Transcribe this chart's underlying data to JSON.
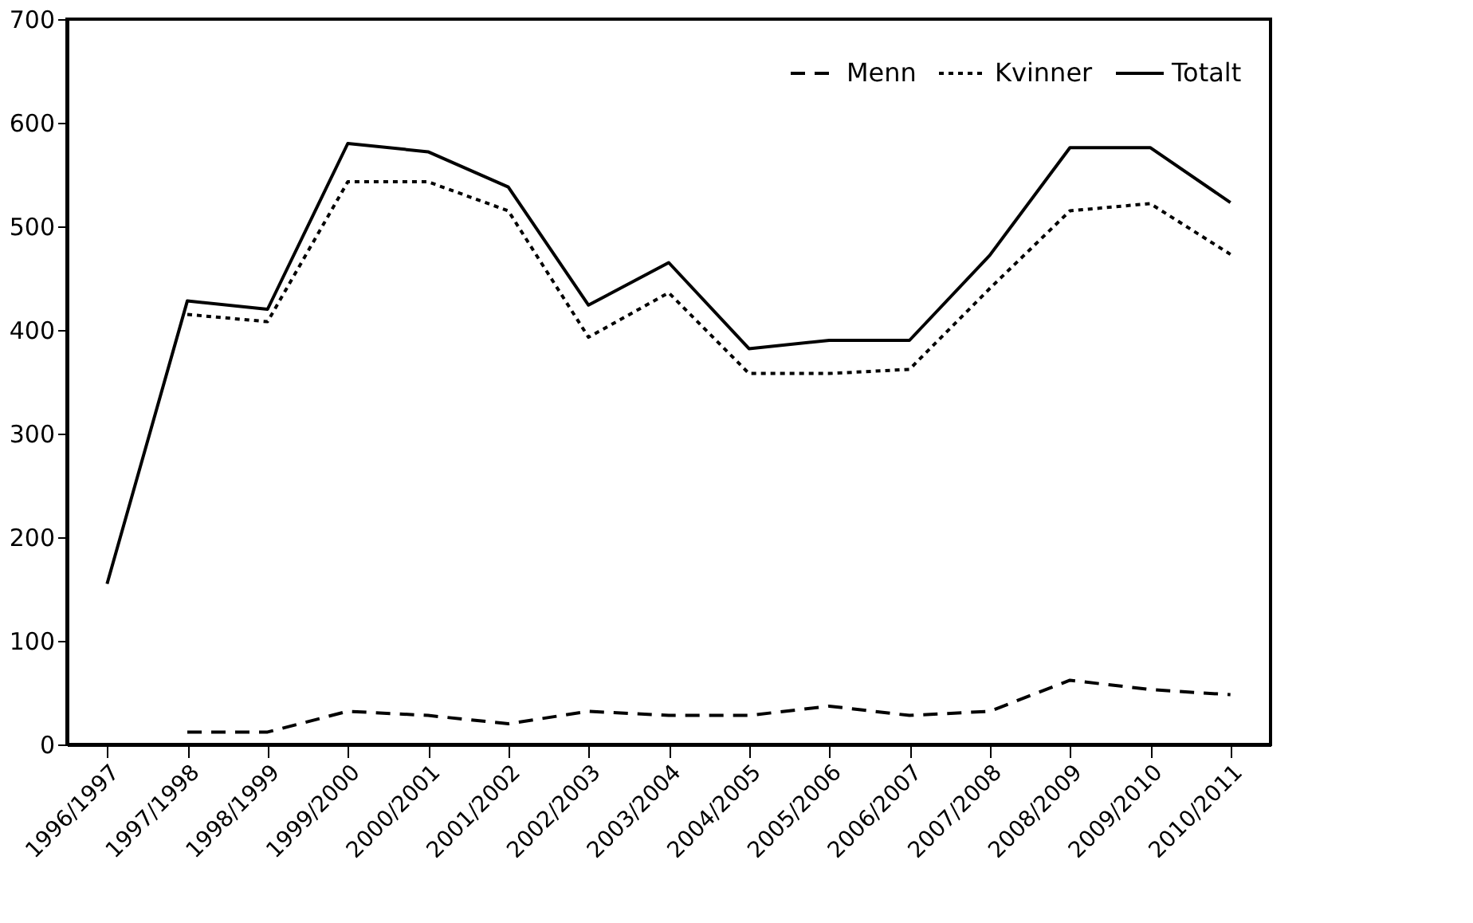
{
  "chart_data": {
    "type": "line",
    "categories": [
      "1996/1997",
      "1997/1998",
      "1998/1999",
      "1999/2000",
      "2000/2001",
      "2001/2002",
      "2002/2003",
      "2003/2004",
      "2004/2005",
      "2005/2006",
      "2006/2007",
      "2007/2008",
      "2008/2009",
      "2009/2010",
      "2010/2011"
    ],
    "series": [
      {
        "name": "Menn",
        "color": "#000000",
        "line_style": "dashed",
        "values": [
          null,
          12,
          12,
          32,
          28,
          20,
          32,
          28,
          28,
          37,
          28,
          32,
          62,
          53,
          48
        ]
      },
      {
        "name": "Kvinner",
        "color": "#000000",
        "line_style": "dotted",
        "values": [
          null,
          415,
          408,
          543,
          543,
          515,
          393,
          436,
          358,
          358,
          362,
          440,
          515,
          522,
          473
        ]
      },
      {
        "name": "Totalt",
        "color": "#000000",
        "line_style": "solid",
        "values": [
          155,
          428,
          420,
          580,
          572,
          538,
          424,
          465,
          382,
          390,
          390,
          472,
          576,
          576,
          523
        ]
      }
    ],
    "ylim": [
      0,
      700
    ],
    "yticks": [
      0,
      100,
      200,
      300,
      400,
      500,
      600,
      700
    ],
    "grid": false,
    "legend": "top right"
  }
}
